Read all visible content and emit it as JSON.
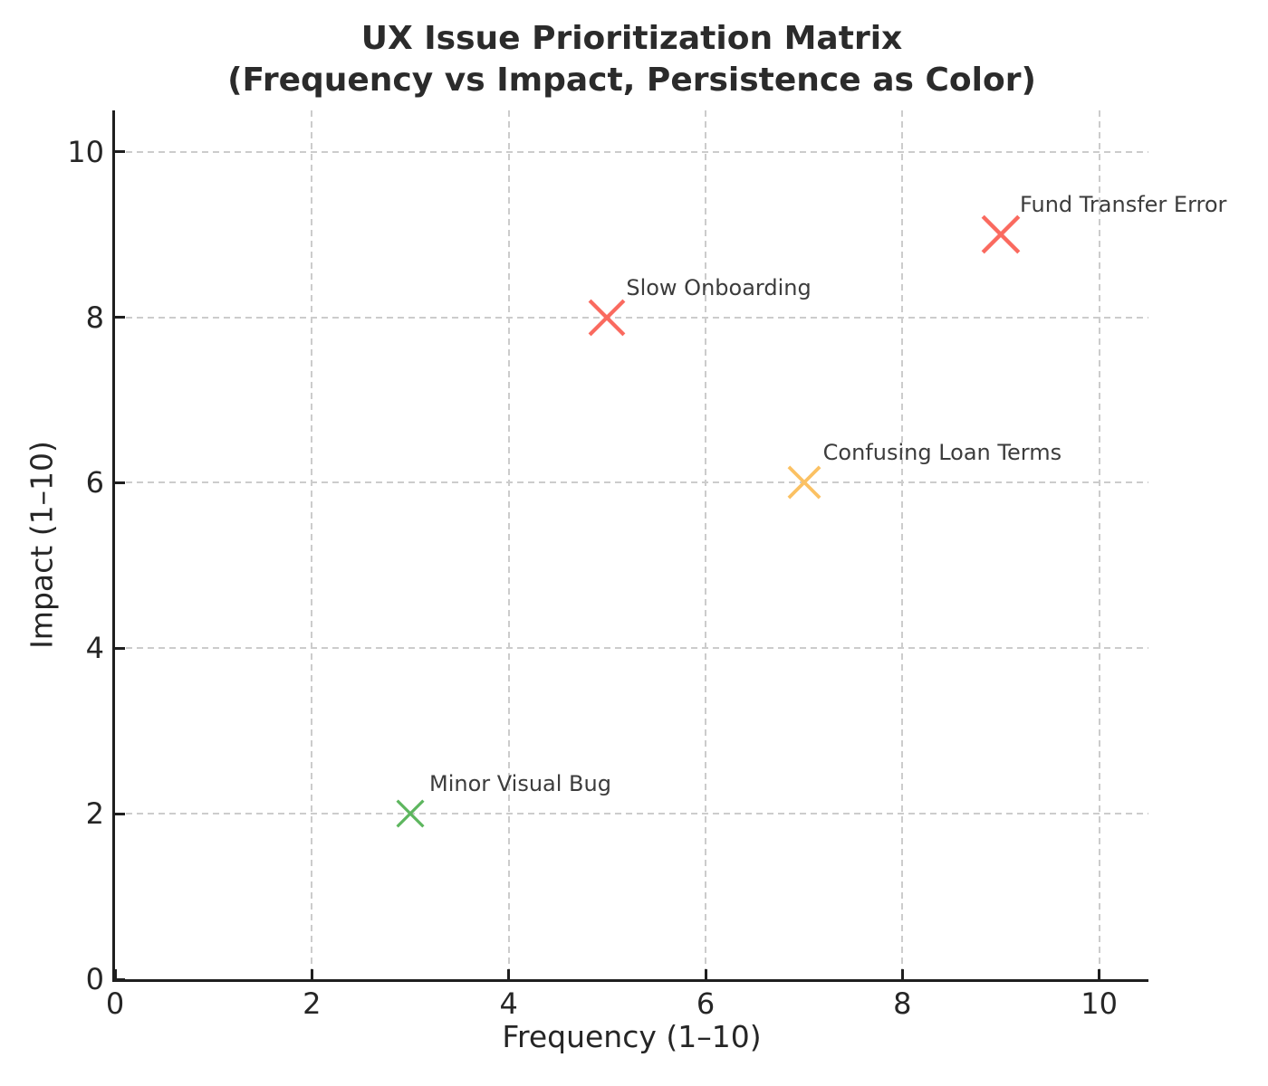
{
  "title": {
    "line1": "UX Issue Prioritization Matrix",
    "line2": "(Frequency vs Impact, Persistence as Color)"
  },
  "chart_data": {
    "type": "scatter",
    "title": "UX Issue Prioritization Matrix (Frequency vs Impact, Persistence as Color)",
    "xlabel": "Frequency (1–10)",
    "ylabel": "Impact (1–10)",
    "xlim": [
      0,
      10.5
    ],
    "ylim": [
      0,
      10.5
    ],
    "xticks": [
      0,
      2,
      4,
      6,
      8,
      10
    ],
    "yticks": [
      0,
      2,
      4,
      6,
      8,
      10
    ],
    "grid": true,
    "grid_style": "dashed",
    "legend": false,
    "marker": "x",
    "points": [
      {
        "label": "Fund Transfer Error",
        "x": 9,
        "y": 9,
        "color": "#fa6a5f",
        "size": 44
      },
      {
        "label": "Slow Onboarding",
        "x": 5,
        "y": 8,
        "color": "#fa6a5f",
        "size": 42
      },
      {
        "label": "Confusing Loan Terms",
        "x": 7,
        "y": 6,
        "color": "#fbc163",
        "size": 38
      },
      {
        "label": "Minor Visual Bug",
        "x": 3,
        "y": 2,
        "color": "#5db65e",
        "size": 32
      }
    ]
  },
  "colors": {
    "background": "#ffffff",
    "title_text": "#2b2b2b",
    "tick_text": "#262626",
    "axis_label_text": "#262626",
    "annotation_text": "#3c3c3c",
    "spine": "#1f1f1f",
    "grid": "#cccccc",
    "persistence_high": "#fa6a5f",
    "persistence_medium": "#fbc163",
    "persistence_low": "#5db65e"
  }
}
